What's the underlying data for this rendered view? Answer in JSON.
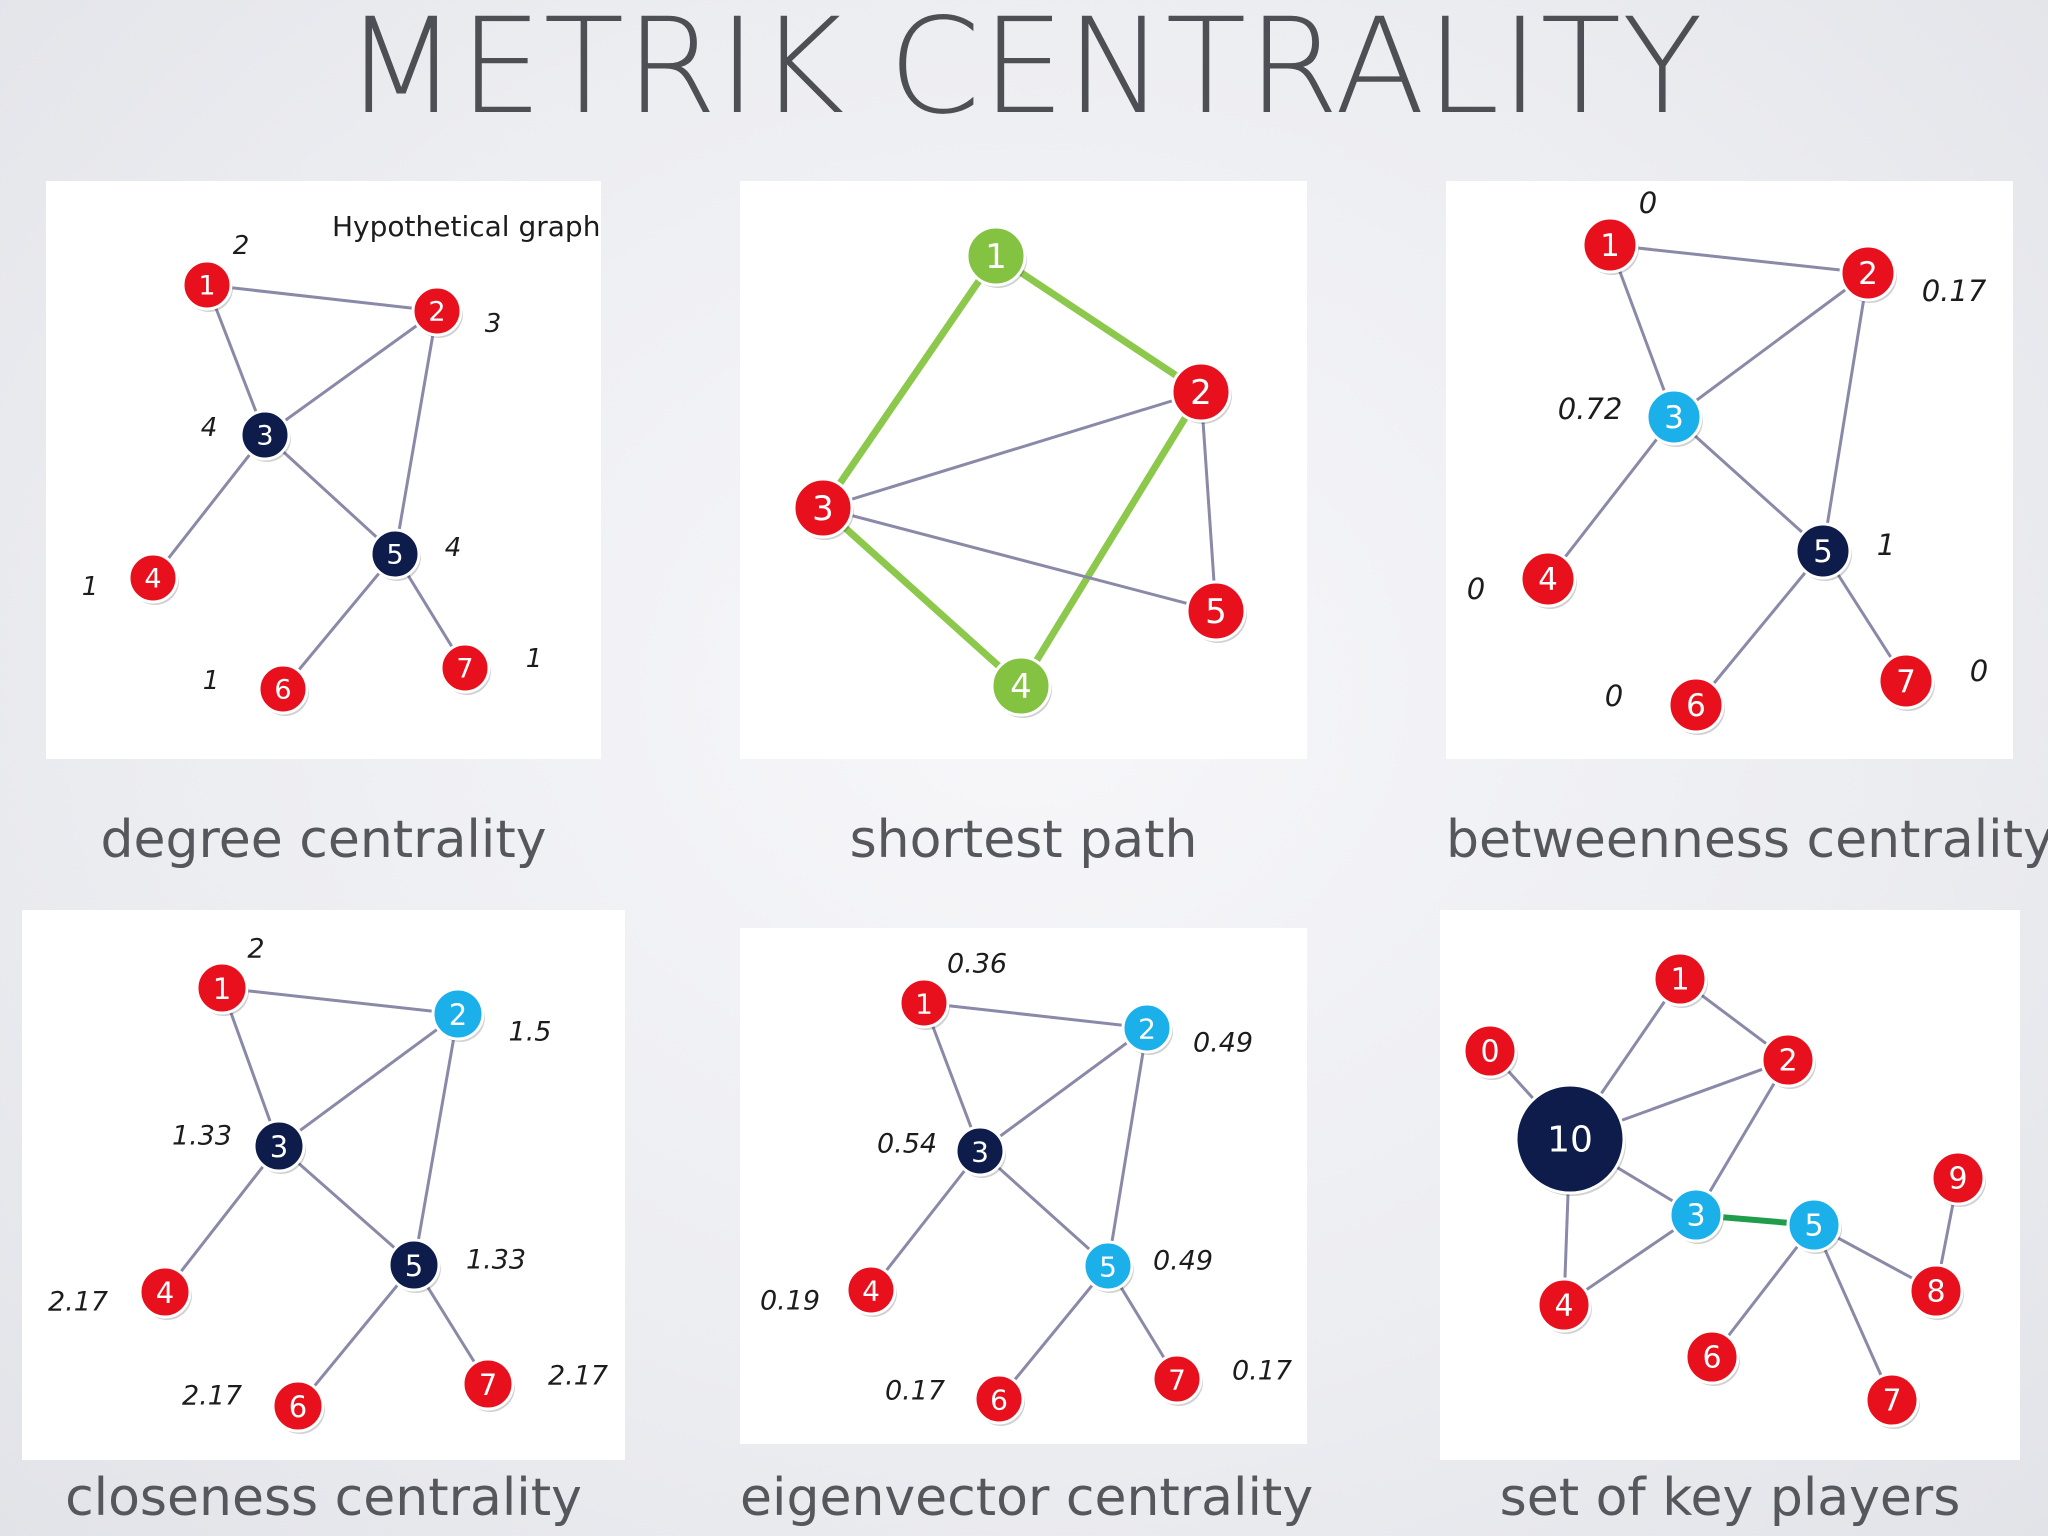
{
  "title": "METRIK CENTRALITY",
  "colors": {
    "red": "#e8101c",
    "navy": "#0d1c4a",
    "cyan": "#1bb0ea",
    "green": "#84c241",
    "edge": "#8a89a8",
    "path": "#8cc84b",
    "key_edge": "#1f9d4a"
  },
  "panels": [
    {
      "id": "degree",
      "caption": "degree centrality",
      "graph_title": "Hypothetical graph",
      "nodes": [
        {
          "label": "1",
          "color": "red",
          "value": "2"
        },
        {
          "label": "2",
          "color": "red",
          "value": "3"
        },
        {
          "label": "3",
          "color": "navy",
          "value": "4"
        },
        {
          "label": "4",
          "color": "red",
          "value": "1"
        },
        {
          "label": "5",
          "color": "navy",
          "value": "4"
        },
        {
          "label": "6",
          "color": "red",
          "value": "1"
        },
        {
          "label": "7",
          "color": "red",
          "value": "1"
        }
      ]
    },
    {
      "id": "shortest",
      "caption": "shortest path",
      "nodes": [
        {
          "label": "1",
          "color": "green"
        },
        {
          "label": "2",
          "color": "red"
        },
        {
          "label": "3",
          "color": "red"
        },
        {
          "label": "4",
          "color": "green"
        },
        {
          "label": "5",
          "color": "red"
        }
      ]
    },
    {
      "id": "betweenness",
      "caption": "betweenness centrality",
      "nodes": [
        {
          "label": "1",
          "color": "red",
          "value": "0"
        },
        {
          "label": "2",
          "color": "red",
          "value": "0.17"
        },
        {
          "label": "3",
          "color": "cyan",
          "value": "0.72"
        },
        {
          "label": "4",
          "color": "red",
          "value": "0"
        },
        {
          "label": "5",
          "color": "navy",
          "value": "1"
        },
        {
          "label": "6",
          "color": "red",
          "value": "0"
        },
        {
          "label": "7",
          "color": "red",
          "value": "0"
        }
      ]
    },
    {
      "id": "closeness",
      "caption": "closeness centrality",
      "nodes": [
        {
          "label": "1",
          "color": "red",
          "value": "2"
        },
        {
          "label": "2",
          "color": "cyan",
          "value": "1.5"
        },
        {
          "label": "3",
          "color": "navy",
          "value": "1.33"
        },
        {
          "label": "4",
          "color": "red",
          "value": "2.17"
        },
        {
          "label": "5",
          "color": "navy",
          "value": "1.33"
        },
        {
          "label": "6",
          "color": "red",
          "value": "2.17"
        },
        {
          "label": "7",
          "color": "red",
          "value": "2.17"
        }
      ]
    },
    {
      "id": "eigenvector",
      "caption": "eigenvector centrality",
      "nodes": [
        {
          "label": "1",
          "color": "red",
          "value": "0.36"
        },
        {
          "label": "2",
          "color": "cyan",
          "value": "0.49"
        },
        {
          "label": "3",
          "color": "navy",
          "value": "0.54"
        },
        {
          "label": "4",
          "color": "red",
          "value": "0.19"
        },
        {
          "label": "5",
          "color": "cyan",
          "value": "0.49"
        },
        {
          "label": "6",
          "color": "red",
          "value": "0.17"
        },
        {
          "label": "7",
          "color": "red",
          "value": "0.17"
        }
      ]
    },
    {
      "id": "keyplayers",
      "caption": "set of key players",
      "nodes": [
        {
          "label": "0",
          "color": "red"
        },
        {
          "label": "1",
          "color": "red"
        },
        {
          "label": "2",
          "color": "red"
        },
        {
          "label": "10",
          "color": "navy"
        },
        {
          "label": "3",
          "color": "cyan"
        },
        {
          "label": "5",
          "color": "cyan"
        },
        {
          "label": "9",
          "color": "red"
        },
        {
          "label": "8",
          "color": "red"
        },
        {
          "label": "4",
          "color": "red"
        },
        {
          "label": "6",
          "color": "red"
        },
        {
          "label": "7",
          "color": "red"
        }
      ]
    }
  ]
}
